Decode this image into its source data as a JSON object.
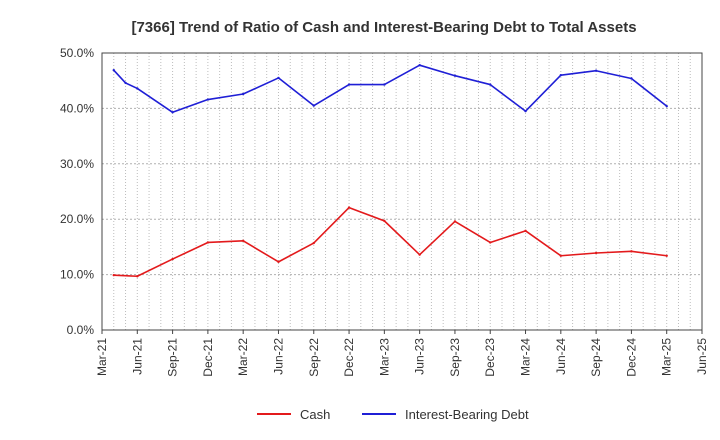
{
  "chart_data": {
    "type": "line",
    "title": "[7366]  Trend of Ratio of Cash and Interest-Bearing Debt to Total Assets",
    "xlabel": "",
    "ylabel": "",
    "ylim": [
      0,
      50
    ],
    "y_ticks": [
      0,
      10,
      20,
      30,
      40,
      50
    ],
    "y_tick_labels": [
      "0.0%",
      "10.0%",
      "20.0%",
      "30.0%",
      "40.0%",
      "50.0%"
    ],
    "x_tick_labels": [
      "Mar-21",
      "Jun-21",
      "Sep-21",
      "Dec-21",
      "Mar-22",
      "Jun-22",
      "Sep-22",
      "Dec-22",
      "Mar-23",
      "Jun-23",
      "Sep-23",
      "Dec-23",
      "Mar-24",
      "Jun-24",
      "Sep-24",
      "Dec-24",
      "Mar-25",
      "Jun-25"
    ],
    "x_months": [
      "Apr-21",
      "May-21",
      "Jun-21",
      "Sep-21",
      "Dec-21",
      "Mar-22",
      "Jun-22",
      "Sep-22",
      "Dec-22",
      "Mar-23",
      "Jun-23",
      "Sep-23",
      "Dec-23",
      "Mar-24",
      "Jun-24",
      "Sep-24",
      "Dec-24",
      "Mar-25"
    ],
    "x_month_index": [
      1,
      2,
      3,
      6,
      9,
      12,
      15,
      18,
      21,
      24,
      27,
      30,
      33,
      36,
      39,
      42,
      45,
      48
    ],
    "x_range_month_index": [
      0,
      51
    ],
    "grid": true,
    "legend_position": "bottom",
    "series": [
      {
        "name": "Cash",
        "color": "#e31a1c",
        "x_month_index": [
          1,
          3,
          6,
          9,
          12,
          15,
          18,
          21,
          24,
          27,
          30,
          33,
          36,
          39,
          42,
          45,
          48
        ],
        "values": [
          9.9,
          9.7,
          12.8,
          15.8,
          16.1,
          12.3,
          15.7,
          22.1,
          19.7,
          13.6,
          19.6,
          15.8,
          17.9,
          13.4,
          13.9,
          14.2,
          13.4
        ]
      },
      {
        "name": "Interest-Bearing Debt",
        "color": "#1f1fd6",
        "x_month_index": [
          1,
          2,
          3,
          6,
          9,
          12,
          15,
          18,
          21,
          24,
          27,
          30,
          33,
          36,
          39,
          42,
          45,
          48
        ],
        "values": [
          46.9,
          44.6,
          43.6,
          39.3,
          41.6,
          42.6,
          45.5,
          40.5,
          44.3,
          44.3,
          47.8,
          45.9,
          44.3,
          39.5,
          46.0,
          46.8,
          45.4,
          40.4
        ]
      }
    ]
  }
}
